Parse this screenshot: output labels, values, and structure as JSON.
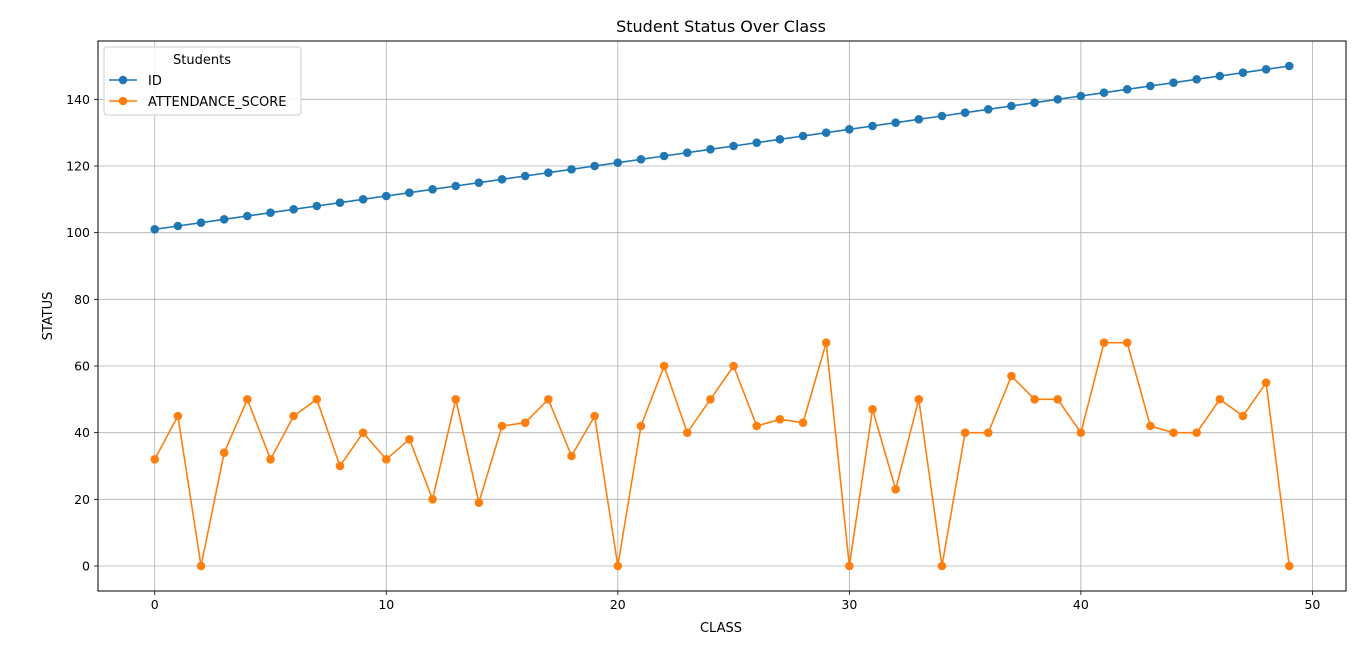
{
  "chart_data": {
    "type": "line",
    "title": "Student Status Over Class",
    "xlabel": "CLASS",
    "ylabel": "STATUS",
    "xlim": [
      -2.45,
      51.45
    ],
    "ylim": [
      -7.5,
      157.5
    ],
    "xticks": [
      0,
      10,
      20,
      30,
      40,
      50
    ],
    "yticks": [
      0,
      20,
      40,
      60,
      80,
      100,
      120,
      140
    ],
    "grid": true,
    "legend": {
      "title": "Students",
      "placement": "top-left"
    },
    "x": [
      0,
      1,
      2,
      3,
      4,
      5,
      6,
      7,
      8,
      9,
      10,
      11,
      12,
      13,
      14,
      15,
      16,
      17,
      18,
      19,
      20,
      21,
      22,
      23,
      24,
      25,
      26,
      27,
      28,
      29,
      30,
      31,
      32,
      33,
      34,
      35,
      36,
      37,
      38,
      39,
      40,
      41,
      42,
      43,
      44,
      45,
      46,
      47,
      48,
      49
    ],
    "series": [
      {
        "name": "ID",
        "color": "#1f77b4",
        "values": [
          101,
          102,
          103,
          104,
          105,
          106,
          107,
          108,
          109,
          110,
          111,
          112,
          113,
          114,
          115,
          116,
          117,
          118,
          119,
          120,
          121,
          122,
          123,
          124,
          125,
          126,
          127,
          128,
          129,
          130,
          131,
          132,
          133,
          134,
          135,
          136,
          137,
          138,
          139,
          140,
          141,
          142,
          143,
          144,
          145,
          146,
          147,
          148,
          149,
          150
        ]
      },
      {
        "name": "ATTENDANCE_SCORE",
        "color": "#ff7f0e",
        "values": [
          32,
          45,
          0,
          34,
          50,
          32,
          45,
          50,
          30,
          40,
          32,
          38,
          20,
          50,
          19,
          42,
          43,
          50,
          33,
          45,
          0,
          42,
          60,
          40,
          50,
          60,
          42,
          44,
          43,
          67,
          0,
          47,
          23,
          50,
          0,
          40,
          40,
          57,
          50,
          50,
          40,
          67,
          67,
          42,
          40,
          40,
          50,
          45,
          55,
          0
        ]
      }
    ]
  }
}
